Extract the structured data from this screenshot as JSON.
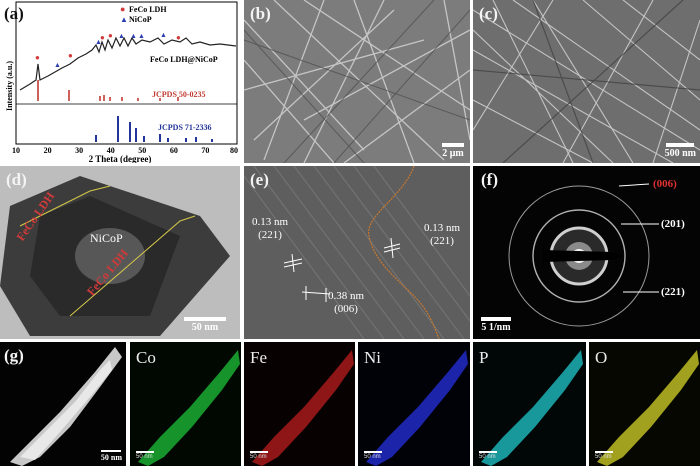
{
  "panels": {
    "a": {
      "label": "(a)",
      "legend": [
        "FeCo LDH",
        "NiCoP"
      ],
      "legend_colors": [
        "#d23b3b",
        "#2c3fb0"
      ],
      "curve_label": "FeCo LDH@NiCoP",
      "ref1_label": "JCPDS 50-0235",
      "ref2_label": "JCPDS 71-2336",
      "ylabel": "Intensity (a.u.)",
      "xlabel": "2 Theta (degree)",
      "xticks": [
        "10",
        "20",
        "30",
        "40",
        "50",
        "60",
        "70",
        "80"
      ],
      "ref1_color": "#c23a32",
      "ref2_color": "#23349a"
    },
    "b": {
      "label": "(b)",
      "scale": "2 μm"
    },
    "c": {
      "label": "(c)",
      "scale": "500 nm"
    },
    "d": {
      "label": "(d)",
      "ldh_top": "FeCo LDH",
      "core": "NiCoP",
      "ldh_bottom": "FeCo LDH",
      "scale": "50 nm"
    },
    "e": {
      "label": "(e)",
      "fringe1": "0.13 nm\n(221)",
      "fringe2": "0.13 nm\n(221)",
      "fringe3": "0.38 nm\n(006)"
    },
    "f": {
      "label": "(f)",
      "ring1": "(006)",
      "ring2": "(201)",
      "ring3": "(221)",
      "scale": "5 1/nm"
    },
    "g": {
      "label": "(g)",
      "scale": "50 nm",
      "small_scale": "50 nm",
      "maps": [
        "Co",
        "Fe",
        "Ni",
        "P",
        "O"
      ],
      "map_colors": [
        "#1fc23a",
        "#c81f1f",
        "#2630e0",
        "#22c9cf",
        "#d6d52a"
      ]
    }
  }
}
